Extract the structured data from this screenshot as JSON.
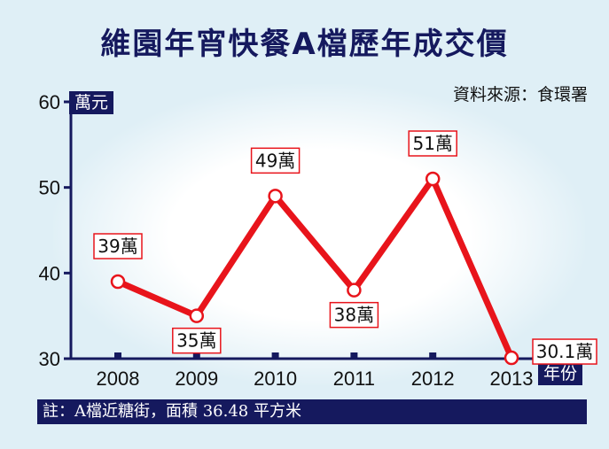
{
  "title": "維園年宵快餐A檔歷年成交價",
  "source": "資料來源：食環署",
  "y_unit": "萬元",
  "x_unit": "年份",
  "footnote": "註：A檔近糖街，面積 36.48 平方米",
  "colors": {
    "line": "#e8141b",
    "navy": "#15195e",
    "label_border": "#e8141b"
  },
  "chart_data": {
    "type": "line",
    "title": "維園年宵快餐A檔歷年成交價",
    "xlabel": "年份",
    "ylabel": "萬元",
    "ylim": [
      30,
      60
    ],
    "yticks": [
      "30",
      "40",
      "50",
      "60"
    ],
    "categories": [
      "2008",
      "2009",
      "2010",
      "2011",
      "2012",
      "2013"
    ],
    "values": [
      39,
      35,
      49,
      38,
      51,
      30.1
    ],
    "data_labels": [
      "39萬",
      "35萬",
      "49萬",
      "38萬",
      "51萬",
      "30.1萬"
    ],
    "grid": false
  }
}
